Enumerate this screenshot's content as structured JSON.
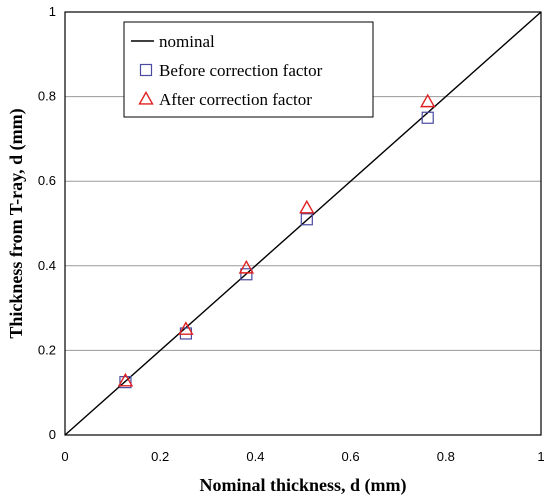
{
  "chart_data": {
    "type": "scatter",
    "xlabel": "Nominal thickness, d (mm)",
    "ylabel": "Thickness from T-ray, d (mm)",
    "xlim": [
      0,
      1
    ],
    "ylim": [
      0,
      1
    ],
    "xticks": [
      "0",
      "0.2",
      "0.4",
      "0.6",
      "0.8",
      "1"
    ],
    "yticks": [
      "0",
      "0.2",
      "0.4",
      "0.6",
      "0.8",
      "1"
    ],
    "grid": "horizontal",
    "legend_position": "top-left",
    "series": [
      {
        "name": "nominal",
        "kind": "line",
        "color": "#000000",
        "x": [
          0,
          1
        ],
        "y": [
          0,
          1
        ]
      },
      {
        "name": "Before correction factor",
        "kind": "marker",
        "marker": "square",
        "color": "#4a4aa0",
        "x": [
          0.127,
          0.254,
          0.381,
          0.508,
          0.762
        ],
        "y": [
          0.125,
          0.24,
          0.38,
          0.51,
          0.75
        ]
      },
      {
        "name": "After correction factor",
        "kind": "marker",
        "marker": "triangle",
        "color": "#e02020",
        "x": [
          0.127,
          0.254,
          0.381,
          0.508,
          0.762
        ],
        "y": [
          0.128,
          0.25,
          0.395,
          0.537,
          0.788
        ]
      }
    ]
  }
}
